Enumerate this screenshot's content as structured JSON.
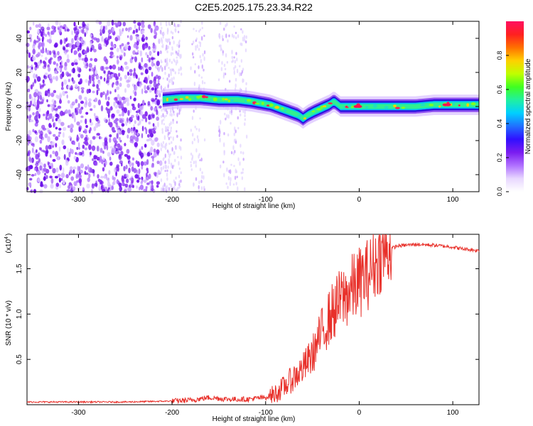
{
  "title": "C2E5.2025.175.23.34.R22",
  "chart_data": [
    {
      "type": "heatmap",
      "xlabel": "Height of straight line (km)",
      "ylabel": "Frequency (Hz)",
      "xlim": [
        -355,
        128
      ],
      "ylim": [
        -50,
        50
      ],
      "xticks": [
        -300,
        -200,
        -100,
        0,
        100
      ],
      "yticks": [
        -40,
        -20,
        0,
        20,
        40
      ],
      "colorbar": {
        "label": "Normalized spectral amplitude",
        "range": [
          0,
          1
        ],
        "ticks": [
          "0.0",
          "0.2",
          "0.4",
          "0.6",
          "0.8"
        ],
        "colormap": [
          "#ffffff",
          "#e8d8ff",
          "#b070ff",
          "#7a1cf0",
          "#3010ff",
          "#2070ff",
          "#00d0ff",
          "#20f0a0",
          "#40ff20",
          "#c0ff00",
          "#ffd000",
          "#ff7000",
          "#ff2020",
          "#ff1060"
        ]
      },
      "ridge": {
        "x": [
          -210,
          -190,
          -170,
          -150,
          -130,
          -115,
          -105,
          -95,
          -85,
          -75,
          -65,
          -60,
          -55,
          -48,
          -40,
          -32,
          -27,
          -20,
          -10,
          0,
          20,
          40,
          60,
          80,
          100,
          128
        ],
        "frequency": [
          4,
          5,
          5,
          4,
          4,
          3,
          2,
          1,
          -1,
          -3,
          -5,
          -7,
          -5,
          -3,
          -1,
          1,
          3,
          0,
          0,
          0,
          0,
          0,
          0,
          1,
          1,
          1
        ]
      }
    },
    {
      "type": "line",
      "xlabel": "Height of straight line (km)",
      "ylabel": "SNR (10 * v/v)",
      "scale_label": "(x10",
      "scale_exponent": "4",
      "xlim": [
        -355,
        128
      ],
      "ylim": [
        0,
        1.88
      ],
      "xticks": [
        -300,
        -200,
        -100,
        0,
        100
      ],
      "yticks": [
        "0.5",
        "1.0",
        "1.5"
      ],
      "color": "#e8302a",
      "series": [
        {
          "x": [
            -355,
            -300,
            -250,
            -200,
            -180,
            -160,
            -140,
            -120,
            -100,
            -90,
            -80,
            -70,
            -60,
            -50,
            -40,
            -30,
            -20,
            -10,
            0,
            10,
            20,
            30,
            40,
            60,
            80,
            100,
            110,
            128
          ],
          "values": [
            0.03,
            0.03,
            0.03,
            0.04,
            0.05,
            0.08,
            0.06,
            0.06,
            0.08,
            0.12,
            0.2,
            0.3,
            0.4,
            0.55,
            0.8,
            1.0,
            1.15,
            1.25,
            1.35,
            1.45,
            1.6,
            1.7,
            1.75,
            1.77,
            1.76,
            1.74,
            1.72,
            1.7
          ]
        }
      ]
    }
  ]
}
